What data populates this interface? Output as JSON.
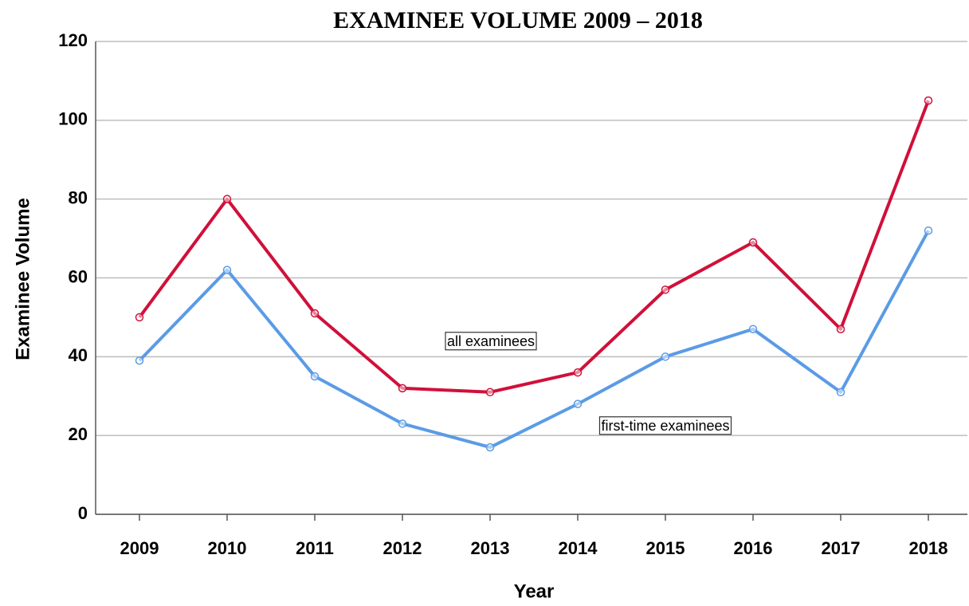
{
  "chart_data": {
    "type": "line",
    "title": "EXAMINEE VOLUME 2009 – 2018",
    "x_label": "Year",
    "y_label": "Examinee Volume",
    "categories": [
      "2009",
      "2010",
      "2011",
      "2012",
      "2013",
      "2014",
      "2015",
      "2016",
      "2017",
      "2018"
    ],
    "series": [
      {
        "name": "all examinees",
        "color": "#d0103a",
        "values": [
          50,
          80,
          51,
          32,
          31,
          36,
          57,
          69,
          47,
          105
        ]
      },
      {
        "name": "first-time examinees",
        "color": "#5a9be6",
        "values": [
          39,
          62,
          35,
          23,
          17,
          28,
          40,
          47,
          31,
          72
        ]
      }
    ],
    "ylim": [
      0,
      120
    ],
    "yticks": [
      0,
      20,
      40,
      60,
      80,
      100,
      120
    ],
    "grid": true
  }
}
